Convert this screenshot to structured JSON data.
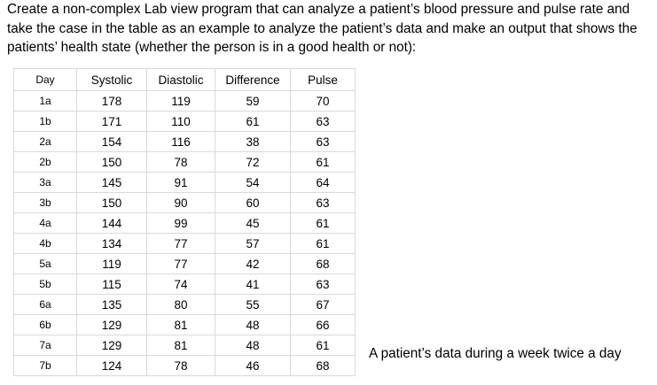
{
  "question": {
    "line1": "Create a non-complex Lab view program that can analyze a patient’s blood pressure and pulse rate and",
    "line2": "take the case in the table as an example to analyze the patient’s data and make an output that shows the",
    "line3": "patients’ health state (whether the person is in a good health or not):"
  },
  "table": {
    "headers": {
      "day": "Day",
      "systolic": "Systolic",
      "diastolic": "Diastolic",
      "difference": "Difference",
      "pulse": "Pulse"
    },
    "rows": [
      {
        "day": "1a",
        "systolic": "178",
        "diastolic": "119",
        "difference": "59",
        "pulse": "70"
      },
      {
        "day": "1b",
        "systolic": "171",
        "diastolic": "110",
        "difference": "61",
        "pulse": "63"
      },
      {
        "day": "2a",
        "systolic": "154",
        "diastolic": "116",
        "difference": "38",
        "pulse": "63"
      },
      {
        "day": "2b",
        "systolic": "150",
        "diastolic": "78",
        "difference": "72",
        "pulse": "61"
      },
      {
        "day": "3a",
        "systolic": "145",
        "diastolic": "91",
        "difference": "54",
        "pulse": "64"
      },
      {
        "day": "3b",
        "systolic": "150",
        "diastolic": "90",
        "difference": "60",
        "pulse": "63"
      },
      {
        "day": "4a",
        "systolic": "144",
        "diastolic": "99",
        "difference": "45",
        "pulse": "61"
      },
      {
        "day": "4b",
        "systolic": "134",
        "diastolic": "77",
        "difference": "57",
        "pulse": "61"
      },
      {
        "day": "5a",
        "systolic": "119",
        "diastolic": "77",
        "difference": "42",
        "pulse": "68"
      },
      {
        "day": "5b",
        "systolic": "115",
        "diastolic": "74",
        "difference": "41",
        "pulse": "63"
      },
      {
        "day": "6a",
        "systolic": "135",
        "diastolic": "80",
        "difference": "55",
        "pulse": "67"
      },
      {
        "day": "6b",
        "systolic": "129",
        "diastolic": "81",
        "difference": "48",
        "pulse": "66"
      },
      {
        "day": "7a",
        "systolic": "129",
        "diastolic": "81",
        "difference": "48",
        "pulse": "61"
      },
      {
        "day": "7b",
        "systolic": "124",
        "diastolic": "78",
        "difference": "46",
        "pulse": "68"
      }
    ]
  },
  "caption": "A patient’s data during a week twice a day"
}
